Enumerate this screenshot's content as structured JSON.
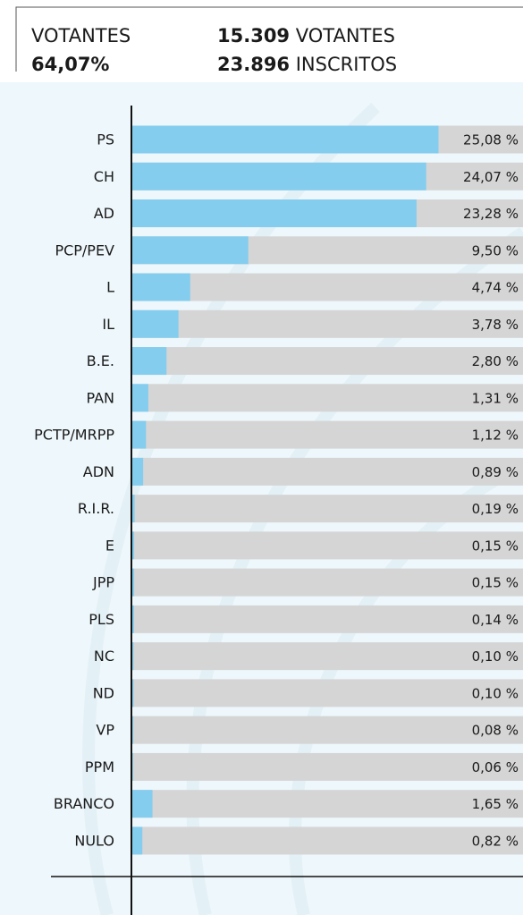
{
  "summary": {
    "turnout_label": "VOTANTES",
    "turnout": "64,07%",
    "voters": "15.309",
    "voters_label": "VOTANTES",
    "registered": "23.896",
    "registered_label": "INSCRITOS"
  },
  "chart_data": {
    "type": "hbar",
    "categories": [
      "PS",
      "CH",
      "AD",
      "PCP/PEV",
      "L",
      "IL",
      "B.E.",
      "PAN",
      "PCTP/MRPP",
      "ADN",
      "R.I.R.",
      "E",
      "JPP",
      "PLS",
      "NC",
      "ND",
      "VP",
      "PPM",
      "BRANCO",
      "NULO"
    ],
    "values": [
      25.08,
      24.07,
      23.28,
      9.5,
      4.74,
      3.78,
      2.8,
      1.31,
      1.12,
      0.89,
      0.19,
      0.15,
      0.15,
      0.14,
      0.1,
      0.1,
      0.08,
      0.06,
      1.65,
      0.82
    ],
    "value_labels": [
      "25,08 %",
      "24,07 %",
      "23,28 %",
      "9,50 %",
      "4,74 %",
      "3,78 %",
      "2,80 %",
      "1,31 %",
      "1,12 %",
      "0,89 %",
      "0,19 %",
      "0,15 %",
      "0,15 %",
      "0,14 %",
      "0,10 %",
      "0,10 %",
      "0,08 %",
      "0,06 %",
      "1,65 %",
      "0,82 %"
    ],
    "color": "#84cdee",
    "track_color": "#d5d5d5",
    "xlim": [
      0,
      32
    ]
  }
}
